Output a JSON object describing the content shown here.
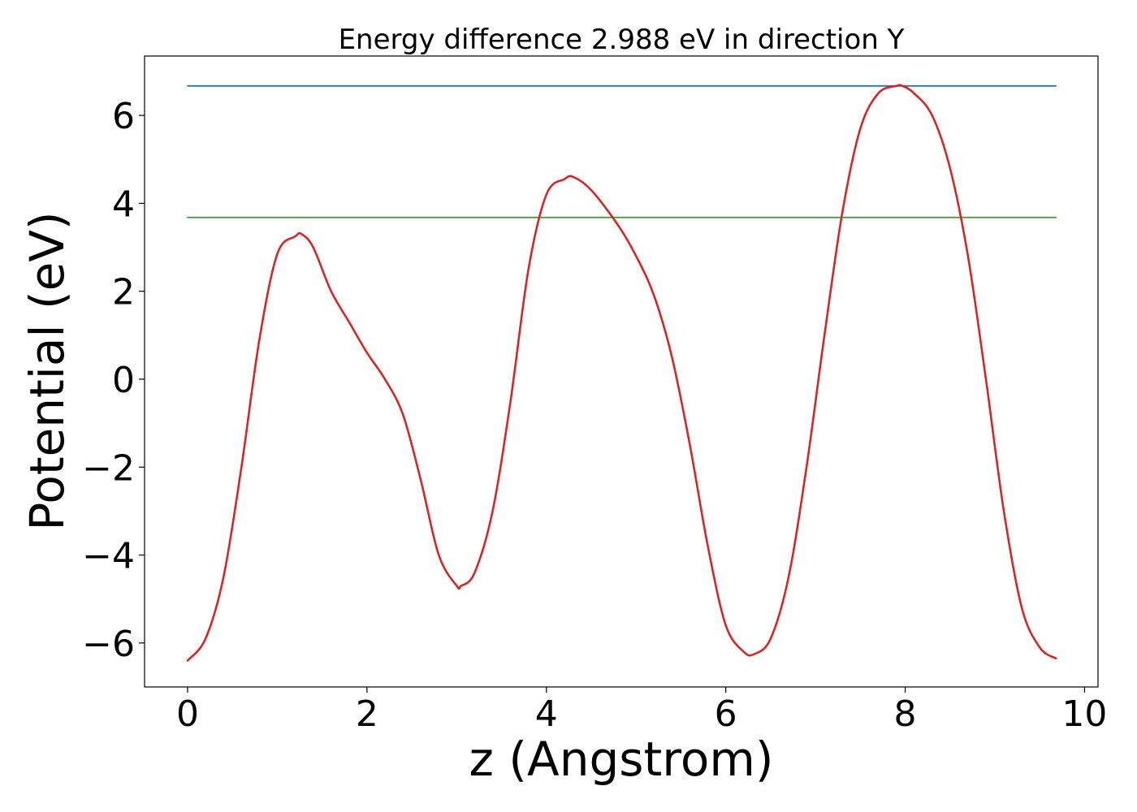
{
  "chart_data": {
    "type": "line",
    "title": "Energy difference 2.988 eV in direction Y",
    "xlabel": "z (Angstrom)",
    "ylabel": "Potential (eV)",
    "xlim": [
      -0.48,
      10.15
    ],
    "ylim": [
      -7.0,
      7.35
    ],
    "xticks": [
      0,
      2,
      4,
      6,
      8,
      10
    ],
    "yticks": [
      -6,
      -4,
      -2,
      0,
      2,
      4,
      6
    ],
    "xtick_labels": [
      "0",
      "2",
      "4",
      "6",
      "8",
      "10"
    ],
    "ytick_labels": [
      "−6",
      "−4",
      "−2",
      "0",
      "2",
      "4",
      "6"
    ],
    "grid": false,
    "series": [
      {
        "color": "#d62728",
        "x": [
          0.0,
          0.2,
          0.4,
          0.6,
          0.8,
          1.0,
          1.2,
          1.27,
          1.4,
          1.6,
          1.8,
          2.0,
          2.2,
          2.4,
          2.6,
          2.8,
          3.0,
          3.05,
          3.2,
          3.4,
          3.6,
          3.8,
          4.0,
          4.2,
          4.3,
          4.5,
          4.8,
          5.0,
          5.2,
          5.4,
          5.6,
          5.8,
          6.0,
          6.2,
          6.32,
          6.5,
          6.7,
          6.9,
          7.1,
          7.3,
          7.5,
          7.7,
          7.9,
          7.97,
          8.1,
          8.3,
          8.5,
          8.7,
          8.9,
          9.1,
          9.3,
          9.5,
          9.68
        ],
        "y": [
          -6.4,
          -5.9,
          -4.5,
          -2.0,
          0.9,
          2.85,
          3.25,
          3.3,
          3.0,
          2.0,
          1.3,
          0.6,
          0.0,
          -0.8,
          -2.3,
          -4.0,
          -4.7,
          -4.7,
          -4.4,
          -3.0,
          -0.5,
          2.5,
          4.2,
          4.55,
          4.6,
          4.3,
          3.5,
          2.8,
          1.9,
          0.5,
          -1.5,
          -3.8,
          -5.6,
          -6.2,
          -6.25,
          -5.9,
          -4.5,
          -2.0,
          1.0,
          3.8,
          5.7,
          6.5,
          6.67,
          6.67,
          6.5,
          6.0,
          4.8,
          2.8,
          0.0,
          -3.0,
          -5.2,
          -6.1,
          -6.35
        ]
      },
      {
        "color": "#1f77b4",
        "x": [
          0.0,
          9.68
        ],
        "y": [
          6.67,
          6.67
        ]
      },
      {
        "color": "#2ca02c",
        "x": [
          0.0,
          9.68
        ],
        "y": [
          3.68,
          3.68
        ]
      }
    ]
  }
}
